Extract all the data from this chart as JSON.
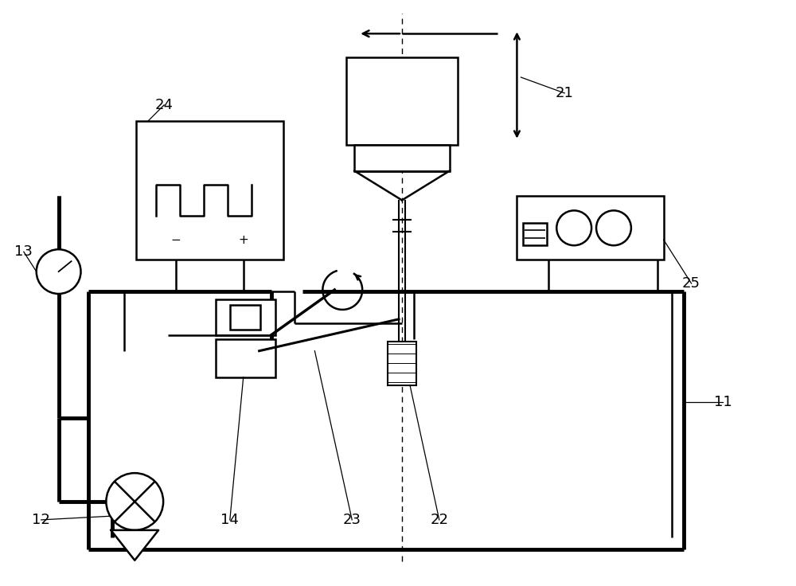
{
  "bg_color": "#ffffff",
  "line_color": "#000000",
  "lw": 1.8,
  "tlw": 3.5,
  "fs": 13
}
